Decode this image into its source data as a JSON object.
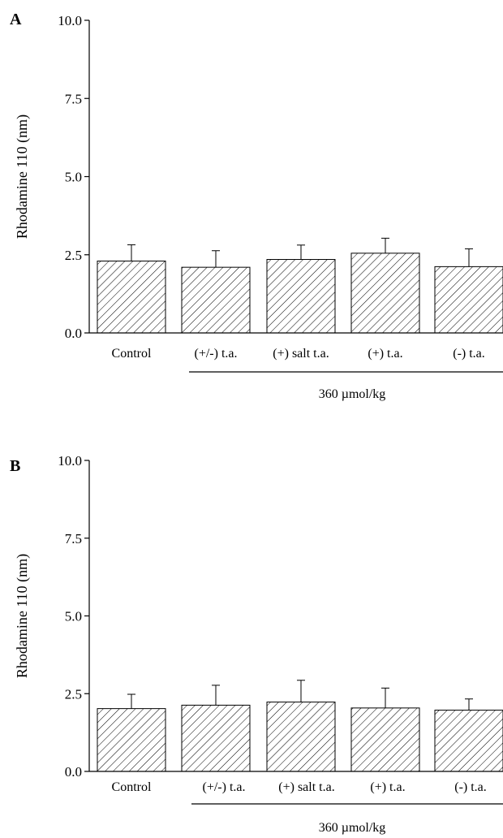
{
  "chart_data": [
    {
      "type": "bar",
      "panel_label": "A",
      "categories": [
        "Control",
        "(+/-) t.a.",
        "(+) salt t.a.",
        "(+) t.a.",
        "(-) t.a."
      ],
      "values": [
        2.3,
        2.1,
        2.35,
        2.55,
        2.12
      ],
      "errors": [
        0.52,
        0.53,
        0.46,
        0.48,
        0.57
      ],
      "ylabel": "Rhodamine 110 (nm)",
      "ylim": [
        0,
        10
      ],
      "yticks": [
        "0.0",
        "2.5",
        "5.0",
        "7.5",
        "10.0"
      ],
      "group_label": "360 µmol/kg",
      "group_categories": [
        1,
        2,
        3,
        4
      ]
    },
    {
      "type": "bar",
      "panel_label": "B",
      "categories": [
        "Control",
        "(+/-) t.a.",
        "(+) salt t.a.",
        "(+) t.a.",
        "(-) t.a."
      ],
      "values": [
        2.02,
        2.13,
        2.23,
        2.04,
        1.97
      ],
      "errors": [
        0.46,
        0.64,
        0.7,
        0.64,
        0.36
      ],
      "ylabel": "Rhodamine 110 (nm)",
      "ylim": [
        0,
        10
      ],
      "yticks": [
        "0.0",
        "2.5",
        "5.0",
        "7.5",
        "10.0"
      ],
      "group_label": "360 µmol/kg",
      "group_categories": [
        1,
        2,
        3,
        4
      ]
    }
  ]
}
